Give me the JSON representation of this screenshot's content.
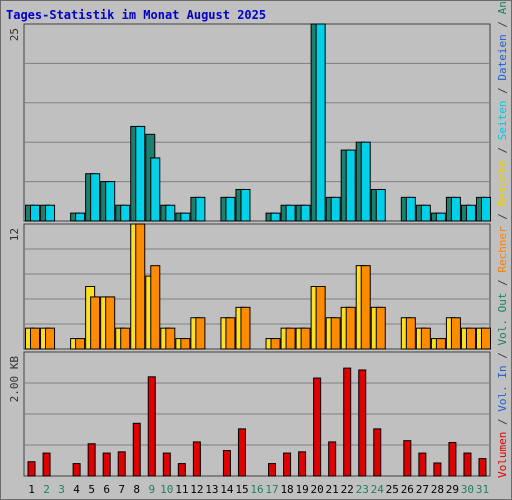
{
  "chart_data": {
    "type": "bar",
    "title": "Tages-Statistik im Monat August 2025",
    "categories": [
      "1",
      "2",
      "3",
      "4",
      "5",
      "6",
      "7",
      "8",
      "9",
      "10",
      "11",
      "12",
      "13",
      "14",
      "15",
      "16",
      "17",
      "18",
      "19",
      "20",
      "21",
      "22",
      "23",
      "24",
      "25",
      "26",
      "27",
      "28",
      "29",
      "30",
      "31"
    ],
    "weekend_days": [
      2,
      3,
      9,
      10,
      16,
      17,
      23,
      24,
      30,
      31
    ],
    "legend_segments": [
      {
        "text": "Volumen",
        "color": "#e00000"
      },
      {
        "text": " / ",
        "color": "#404040"
      },
      {
        "text": "Vol. In",
        "color": "#2060d0"
      },
      {
        "text": " / ",
        "color": "#404040"
      },
      {
        "text": "Vol. Out",
        "color": "#208060"
      },
      {
        "text": " / ",
        "color": "#404040"
      },
      {
        "text": "Rechner",
        "color": "#ff8000"
      },
      {
        "text": " / ",
        "color": "#404040"
      },
      {
        "text": "Besuche",
        "color": "#e8d000"
      },
      {
        "text": " / ",
        "color": "#404040"
      },
      {
        "text": "Seiten",
        "color": "#00c8e0"
      },
      {
        "text": " / ",
        "color": "#404040"
      },
      {
        "text": "Dateien",
        "color": "#2060d0"
      },
      {
        "text": " / ",
        "color": "#404040"
      },
      {
        "text": "Anfragen",
        "color": "#208060"
      }
    ],
    "panels": [
      {
        "id": "top",
        "ymax_label": "25",
        "ymax": 25,
        "series": [
          {
            "name": "Anfragen",
            "color": "#1a8070",
            "values": [
              2,
              2,
              0,
              1,
              6,
              5,
              2,
              12,
              11,
              2,
              1,
              3,
              0,
              3,
              4,
              0,
              1,
              2,
              2,
              25,
              3,
              9,
              10,
              4,
              0,
              3,
              2,
              1,
              3,
              2,
              3
            ]
          },
          {
            "name": "Seiten",
            "color": "#00d0e8",
            "values": [
              2,
              2,
              0,
              1,
              6,
              5,
              2,
              12,
              8,
              2,
              1,
              3,
              0,
              3,
              4,
              0,
              1,
              2,
              2,
              25,
              3,
              9,
              10,
              4,
              0,
              3,
              2,
              1,
              3,
              2,
              3
            ]
          }
        ]
      },
      {
        "id": "middle",
        "ymax_label": "12",
        "ymax": 12,
        "series": [
          {
            "name": "Besuche",
            "color": "#ffe020",
            "values": [
              2,
              2,
              0,
              1,
              6,
              5,
              2,
              12,
              7,
              2,
              1,
              3,
              0,
              3,
              4,
              0,
              1,
              2,
              2,
              6,
              3,
              4,
              8,
              4,
              0,
              3,
              2,
              1,
              3,
              2,
              2
            ]
          },
          {
            "name": "Rechner",
            "color": "#ff8c00",
            "values": [
              2,
              2,
              0,
              1,
              5,
              5,
              2,
              12,
              8,
              2,
              1,
              3,
              0,
              3,
              4,
              0,
              1,
              2,
              2,
              6,
              3,
              4,
              8,
              4,
              0,
              3,
              2,
              1,
              3,
              2,
              2
            ]
          }
        ]
      },
      {
        "id": "bottom",
        "ymax_label": "2.00 KB",
        "ymax": 2.0,
        "series": [
          {
            "name": "Volumen",
            "color": "#e00000",
            "values": [
              0.23,
              0.37,
              0,
              0.2,
              0.52,
              0.37,
              0.39,
              0.85,
              1.6,
              0.37,
              0.2,
              0.55,
              0,
              0.41,
              0.76,
              0,
              0.2,
              0.37,
              0.39,
              1.58,
              0.55,
              1.74,
              1.71,
              0.76,
              0,
              0.57,
              0.37,
              0.21,
              0.54,
              0.37,
              0.28
            ]
          }
        ]
      }
    ]
  }
}
